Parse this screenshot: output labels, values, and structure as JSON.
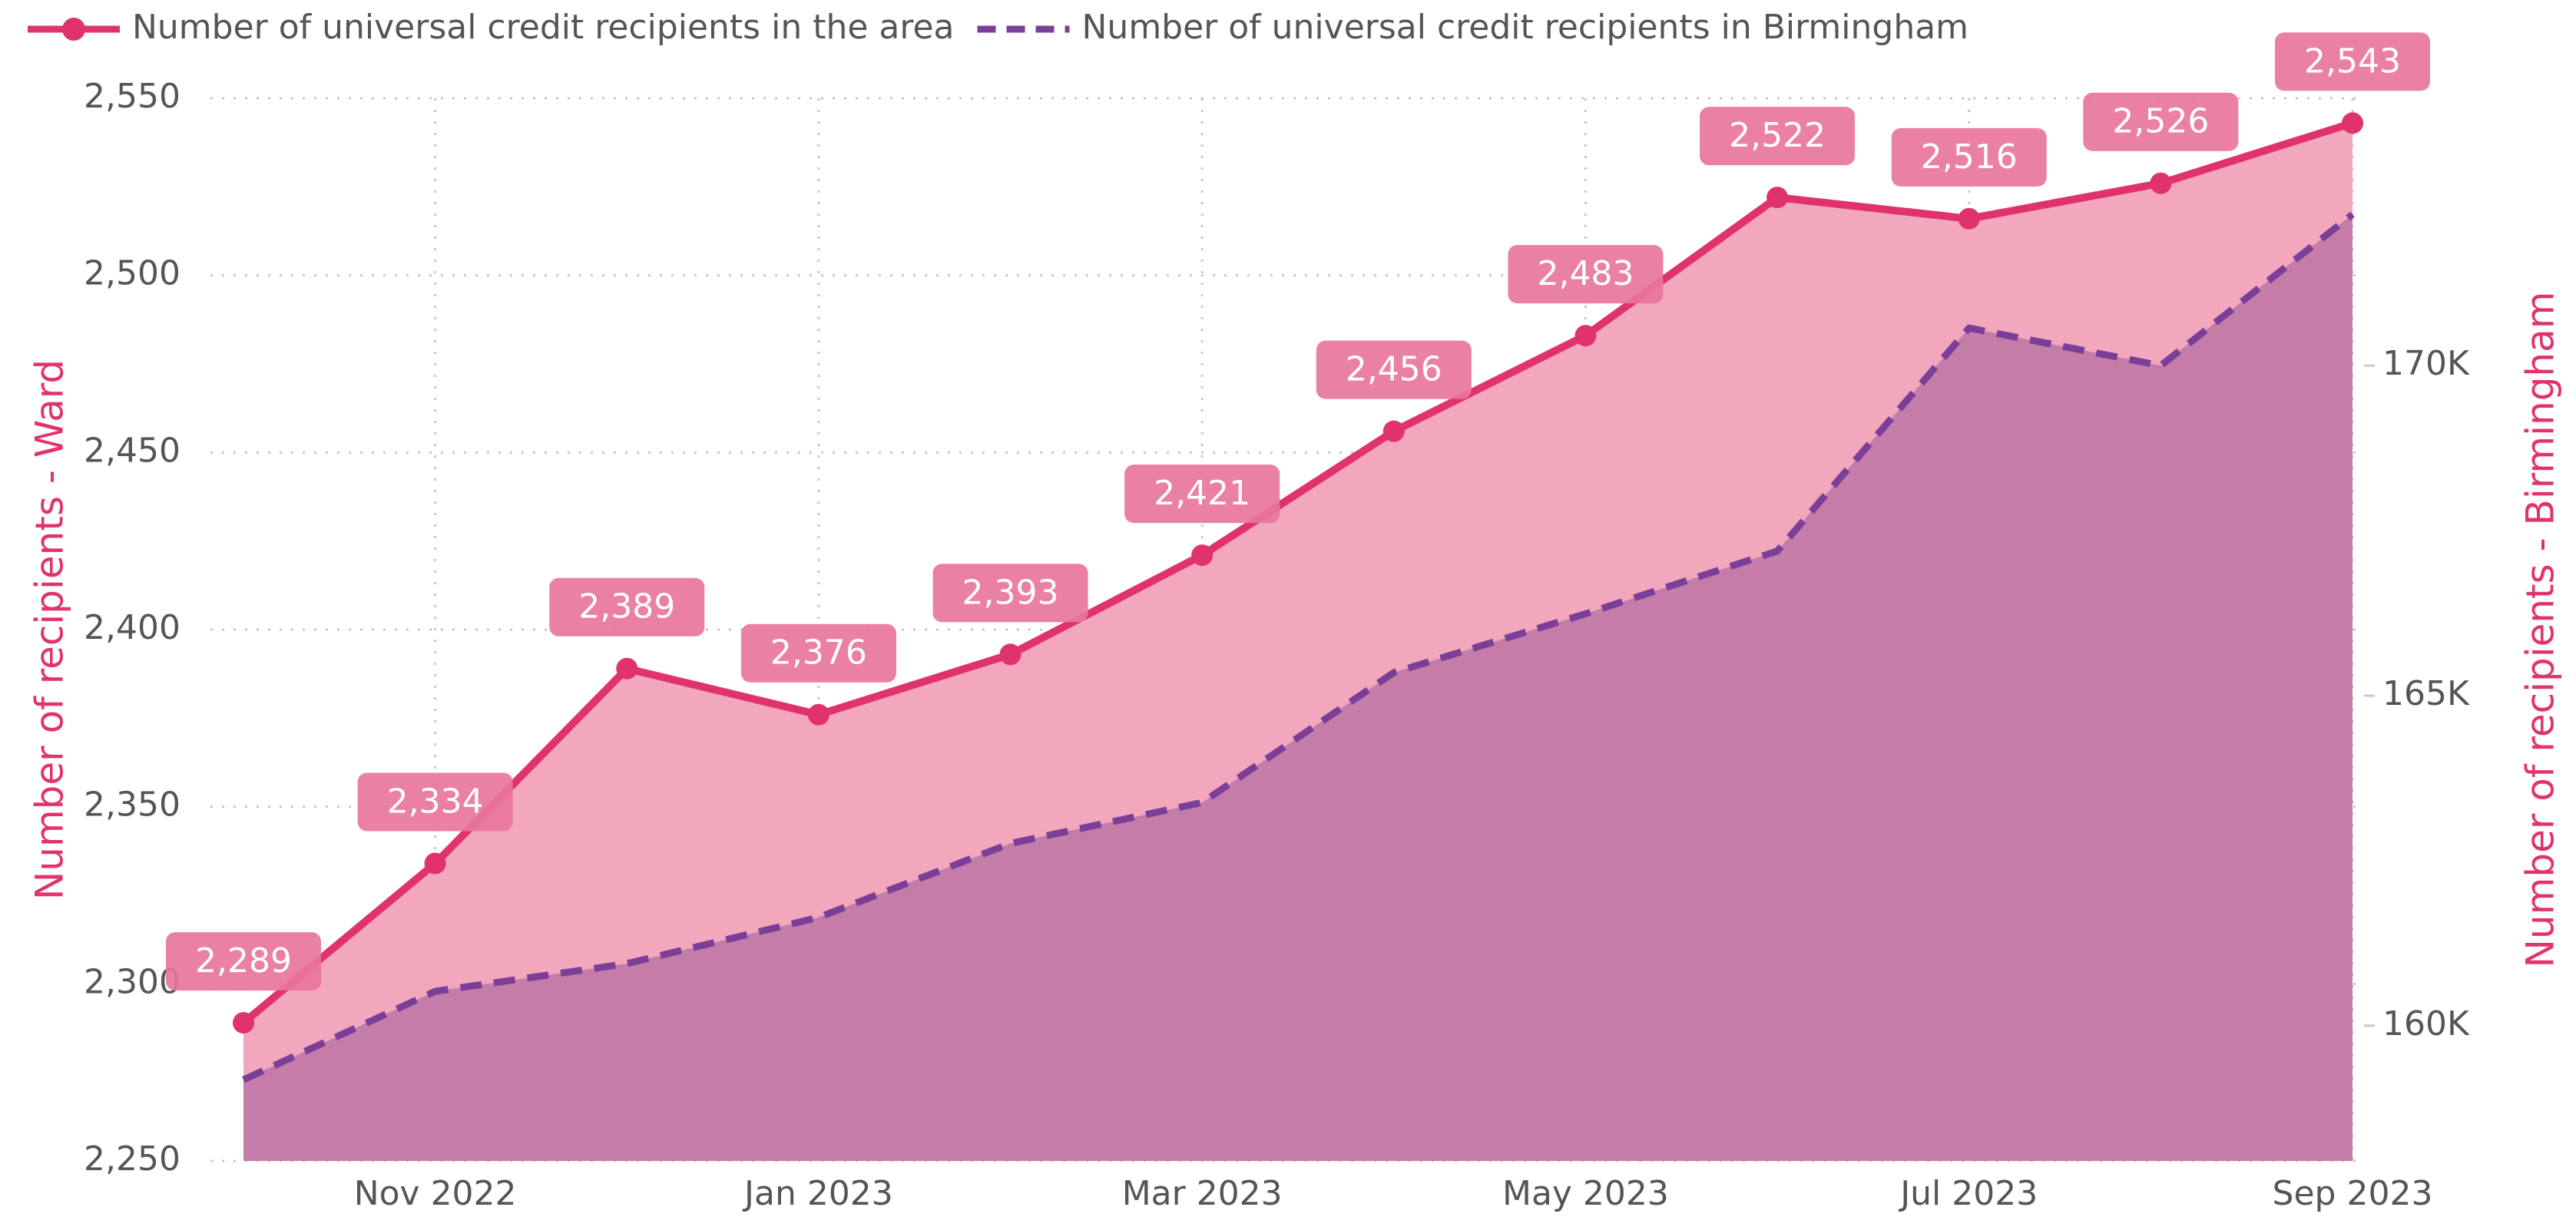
{
  "chart_data": {
    "type": "line",
    "categories": [
      null,
      "Nov 2022",
      null,
      "Jan 2023",
      null,
      "Mar 2023",
      null,
      "May 2023",
      null,
      "Jul 2023",
      null,
      "Sep 2023"
    ],
    "series": [
      {
        "name": "Number of universal credit recipients in the area",
        "color": "#e0336e",
        "area_color": "#f2a7bd",
        "values": [
          2289,
          2334,
          2389,
          2376,
          2393,
          2421,
          2456,
          2483,
          2522,
          2516,
          2526,
          2543
        ],
        "value_labels": [
          "2,289",
          "2,334",
          "2,389",
          "2,376",
          "2,393",
          "2,421",
          "2,456",
          "2,483",
          "2,522",
          "2,516",
          "2,526",
          "2,543"
        ]
      },
      {
        "name": "Number of universal credit recipients in Birmingham",
        "color": "#7b3f98",
        "area_color": "#c47ca9",
        "axis": "y2",
        "dashed": true,
        "values": [
          159180,
          160520,
          160940,
          161640,
          162760,
          163380,
          165350,
          166240,
          167190,
          170570,
          170000,
          172290
        ]
      }
    ],
    "ylabel": "Number of recipients - Ward",
    "y2label": "Number of recipients - Birmingham",
    "ylim": [
      2250,
      2550
    ],
    "yticks": [
      {
        "value": 2250,
        "label": "2,250"
      },
      {
        "value": 2300,
        "label": "2,300"
      },
      {
        "value": 2350,
        "label": "2,350"
      },
      {
        "value": 2400,
        "label": "2,400"
      },
      {
        "value": 2450,
        "label": "2,450"
      },
      {
        "value": 2500,
        "label": "2,500"
      },
      {
        "value": 2550,
        "label": "2,550"
      }
    ],
    "y2lim": [
      157950,
      174050
    ],
    "y2ticks": [
      {
        "value": 160000,
        "label": "160K"
      },
      {
        "value": 165000,
        "label": "165K"
      },
      {
        "value": 170000,
        "label": "170K"
      }
    ],
    "grid": true,
    "legend": "top-left"
  }
}
